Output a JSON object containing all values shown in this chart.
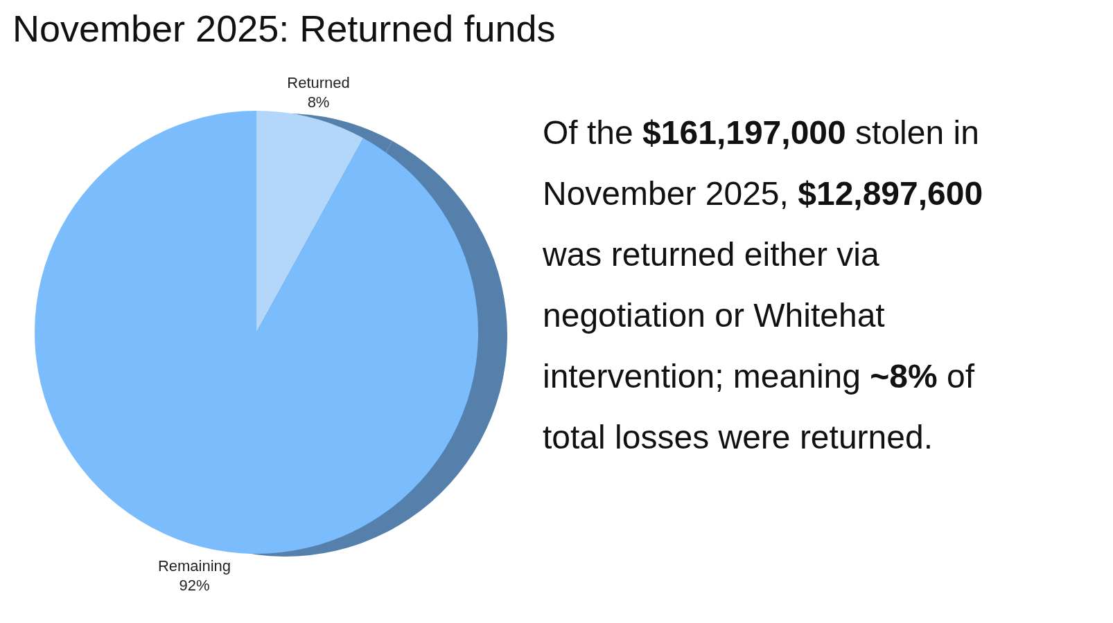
{
  "chart_data": {
    "type": "pie",
    "title": "November 2025: Returned funds",
    "categories": [
      "Returned",
      "Remaining"
    ],
    "values": [
      8,
      92
    ],
    "colors": [
      "#b3d7fb",
      "#7abcfc"
    ],
    "value_labels": [
      "8%",
      "92%"
    ],
    "annotations": [
      "Of the $161,197,000 stolen in November 2025, $12,897,600 was returned either via negotiation or Whitehat intervention; meaning ~8% of total losses were returned."
    ]
  }
}
